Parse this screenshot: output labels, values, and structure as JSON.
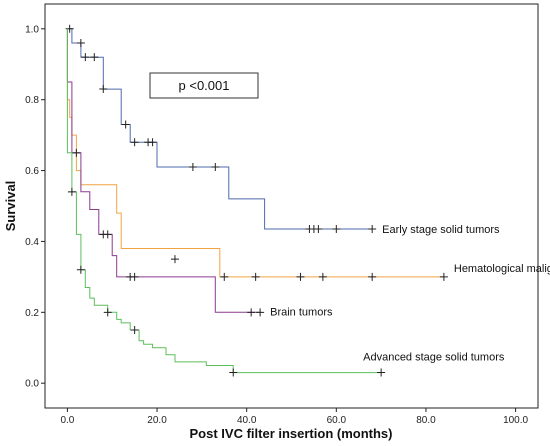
{
  "chart_data": {
    "type": "line",
    "subtype": "kaplan-meier",
    "xlabel": "Post IVC filter insertion  (months)",
    "ylabel": "Survival",
    "xlim": [
      -5,
      105
    ],
    "ylim": [
      -0.07,
      1.07
    ],
    "xticks": [
      "0.0",
      "20.0",
      "40.0",
      "60.0",
      "80.0",
      "100.0"
    ],
    "yticks": [
      "0.0",
      "0.2",
      "0.4",
      "0.6",
      "0.8",
      "1.0"
    ],
    "annotation": "p <0.001",
    "grid": false,
    "series": [
      {
        "name": "Early stage solid tumors",
        "color": "#4e6aad",
        "steps": [
          [
            0,
            1.0
          ],
          [
            1,
            0.96
          ],
          [
            3,
            0.92
          ],
          [
            8,
            0.83
          ],
          [
            12,
            0.73
          ],
          [
            14,
            0.68
          ],
          [
            20,
            0.61
          ],
          [
            36,
            0.52
          ],
          [
            44,
            0.435
          ],
          [
            68,
            0.435
          ]
        ],
        "censored": [
          [
            0.5,
            1.0
          ],
          [
            3,
            0.96
          ],
          [
            4,
            0.92
          ],
          [
            6,
            0.92
          ],
          [
            8,
            0.83
          ],
          [
            13,
            0.73
          ],
          [
            15,
            0.68
          ],
          [
            18,
            0.68
          ],
          [
            19,
            0.68
          ],
          [
            28,
            0.61
          ],
          [
            33,
            0.61
          ],
          [
            54,
            0.435
          ],
          [
            55,
            0.435
          ],
          [
            56,
            0.435
          ],
          [
            60,
            0.435
          ],
          [
            68,
            0.435
          ]
        ]
      },
      {
        "name": "Hematological malignancies",
        "color": "#f2a443",
        "steps": [
          [
            0,
            0.8
          ],
          [
            0.5,
            0.75
          ],
          [
            1,
            0.7
          ],
          [
            2,
            0.6
          ],
          [
            3,
            0.56
          ],
          [
            11,
            0.48
          ],
          [
            12,
            0.38
          ],
          [
            34,
            0.3
          ],
          [
            84,
            0.3
          ]
        ],
        "censored": [
          [
            24,
            0.35
          ],
          [
            35,
            0.3
          ],
          [
            42,
            0.3
          ],
          [
            52,
            0.3
          ],
          [
            57,
            0.3
          ],
          [
            68,
            0.3
          ],
          [
            84,
            0.3
          ]
        ]
      },
      {
        "name": "Brain tumors",
        "color": "#8b3a8f",
        "steps": [
          [
            0,
            0.85
          ],
          [
            1,
            0.65
          ],
          [
            3,
            0.54
          ],
          [
            5,
            0.49
          ],
          [
            7,
            0.42
          ],
          [
            10,
            0.36
          ],
          [
            11,
            0.3
          ],
          [
            33,
            0.2
          ],
          [
            43,
            0.2
          ]
        ],
        "censored": [
          [
            2,
            0.65
          ],
          [
            8,
            0.42
          ],
          [
            9,
            0.42
          ],
          [
            14,
            0.3
          ],
          [
            15,
            0.3
          ],
          [
            41,
            0.2
          ],
          [
            43,
            0.2
          ]
        ]
      },
      {
        "name": "Advanced stage solid tumors",
        "color": "#5cbf5c",
        "steps": [
          [
            0,
            0.65
          ],
          [
            1,
            0.54
          ],
          [
            2,
            0.42
          ],
          [
            3,
            0.32
          ],
          [
            4,
            0.27
          ],
          [
            5,
            0.24
          ],
          [
            6,
            0.22
          ],
          [
            9,
            0.2
          ],
          [
            11,
            0.18
          ],
          [
            12,
            0.17
          ],
          [
            14,
            0.15
          ],
          [
            16,
            0.12
          ],
          [
            17,
            0.11
          ],
          [
            19,
            0.1
          ],
          [
            22,
            0.08
          ],
          [
            24,
            0.06
          ],
          [
            31,
            0.05
          ],
          [
            37,
            0.03
          ],
          [
            70,
            0.03
          ]
        ],
        "censored": [
          [
            1,
            0.54
          ],
          [
            3,
            0.32
          ],
          [
            9,
            0.2
          ],
          [
            15,
            0.15
          ],
          [
            37,
            0.03
          ],
          [
            70,
            0.03
          ]
        ]
      }
    ]
  }
}
